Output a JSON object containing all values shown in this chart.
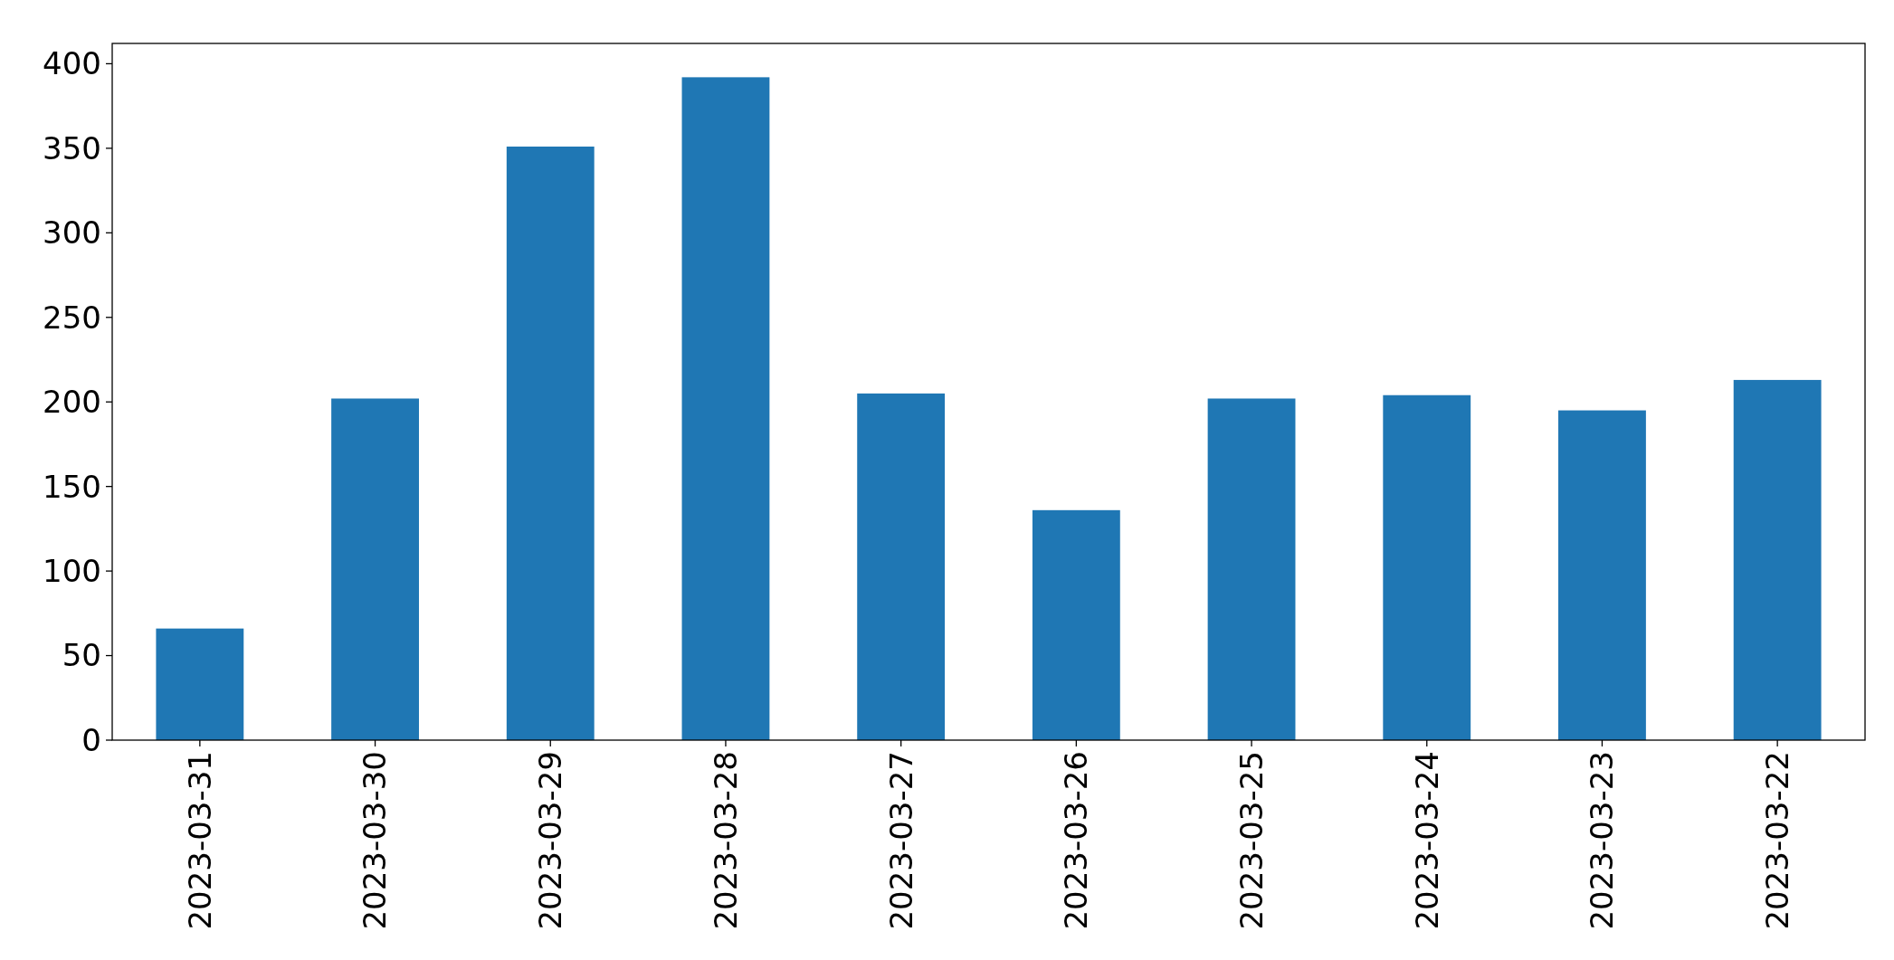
{
  "chart_data": {
    "type": "bar",
    "categories": [
      "2023-03-31",
      "2023-03-30",
      "2023-03-29",
      "2023-03-28",
      "2023-03-27",
      "2023-03-26",
      "2023-03-25",
      "2023-03-24",
      "2023-03-23",
      "2023-03-22"
    ],
    "values": [
      66,
      202,
      351,
      392,
      205,
      136,
      202,
      204,
      195,
      213
    ],
    "color": "#1f77b4",
    "ylim": [
      0,
      412
    ],
    "yticks": [
      0,
      50,
      100,
      150,
      200,
      250,
      300,
      350,
      400
    ],
    "grid": false
  }
}
